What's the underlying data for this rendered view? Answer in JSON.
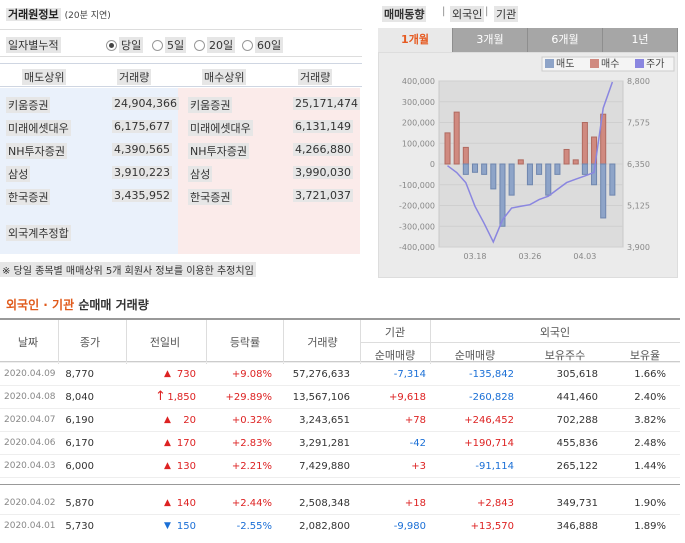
{
  "trade_info": {
    "title": "거래원정보",
    "delay": "(20분 지연)",
    "period_label": "일자별누적",
    "periods": [
      "당일",
      "5일",
      "20일",
      "60일"
    ],
    "selected_period": "당일",
    "headers": {
      "sell": "매도상위",
      "sell_vol": "거래량",
      "buy": "매수상위",
      "buy_vol": "거래량"
    },
    "sell": [
      {
        "name": "키움증권",
        "volume": "24,904,366"
      },
      {
        "name": "미래에셋대우",
        "volume": "6,175,677"
      },
      {
        "name": "NH투자증권",
        "volume": "4,390,565"
      },
      {
        "name": "삼성",
        "volume": "3,910,223"
      },
      {
        "name": "한국증권",
        "volume": "3,435,952"
      }
    ],
    "buy": [
      {
        "name": "키움증권",
        "volume": "25,171,474"
      },
      {
        "name": "미래에셋대우",
        "volume": "6,131,149"
      },
      {
        "name": "NH투자증권",
        "volume": "4,266,880"
      },
      {
        "name": "삼성",
        "volume": "3,990,030"
      },
      {
        "name": "한국증권",
        "volume": "3,721,037"
      }
    ],
    "foreign_est": "외국계추정합",
    "note": "※ 당일 종목별 매매상위 5개 회원사 정보를 이용한 추정치임"
  },
  "trend": {
    "title": "매매동향",
    "foreign": "외국인",
    "institution": "기관",
    "tabs": [
      "1개월",
      "3개월",
      "6개월",
      "1년"
    ],
    "active_tab": "1개월",
    "legend": [
      "매도",
      "매수",
      "주가"
    ],
    "colors": {
      "sell": "#8ea4c8",
      "buy": "#d08a80",
      "price": "#8a86e0"
    }
  },
  "chart_data": {
    "type": "bar",
    "left_ylim": [
      -400000,
      400000
    ],
    "left_ticks": [
      "400,000",
      "300,000",
      "200,000",
      "100,000",
      "0",
      "-100,000",
      "-200,000",
      "-300,000",
      "-400,000"
    ],
    "right_ylim": [
      3900,
      8800
    ],
    "right_ticks": [
      "8,800",
      "7,575",
      "6,350",
      "5,125",
      "3,900"
    ],
    "x_ticks": [
      "03.18",
      "03.26",
      "04.03"
    ],
    "series": [
      {
        "name": "매도",
        "values": [
          0,
          0,
          -50000,
          -40000,
          -50000,
          -120000,
          -300000,
          -150000,
          0,
          -100000,
          -50000,
          -150000,
          -50000,
          0,
          0,
          -50000,
          -100000,
          -260000,
          -150000
        ]
      },
      {
        "name": "매수",
        "values": [
          150000,
          250000,
          80000,
          0,
          0,
          0,
          0,
          0,
          20000,
          0,
          0,
          0,
          0,
          70000,
          20000,
          200000,
          130000,
          240000,
          0
        ]
      },
      {
        "name": "주가",
        "values": [
          6300,
          6100,
          5800,
          5100,
          4600,
          4050,
          4700,
          5050,
          5100,
          5150,
          5300,
          5400,
          5600,
          5800,
          5900,
          6000,
          6100,
          8000,
          8770
        ]
      }
    ]
  },
  "table": {
    "title_red": "외국인 · 기관",
    "title_rest": "순매매 거래량",
    "headers": {
      "date": "날짜",
      "close": "종가",
      "change": "전일비",
      "rate": "등락률",
      "volume": "거래량",
      "inst": "기관",
      "inst_net": "순매매량",
      "foreign": "외국인",
      "for_net": "순매매량",
      "for_hold": "보유주수",
      "for_ratio": "보유율"
    },
    "rows": [
      {
        "date": "2020.04.09",
        "close": "8,770",
        "dir": "up",
        "change": "730",
        "rate": "+9.08%",
        "volume": "57,276,633",
        "inst": "-7,314",
        "inst_dir": "down",
        "foreign": "-135,842",
        "for_dir": "down",
        "hold": "305,618",
        "ratio": "1.66%"
      },
      {
        "date": "2020.04.08",
        "close": "8,040",
        "dir": "limit",
        "change": "1,850",
        "rate": "+29.89%",
        "volume": "13,567,106",
        "inst": "+9,618",
        "inst_dir": "up",
        "foreign": "-260,828",
        "for_dir": "down",
        "hold": "441,460",
        "ratio": "2.40%"
      },
      {
        "date": "2020.04.07",
        "close": "6,190",
        "dir": "up",
        "change": "20",
        "rate": "+0.32%",
        "volume": "3,243,651",
        "inst": "+78",
        "inst_dir": "up",
        "foreign": "+246,452",
        "for_dir": "up",
        "hold": "702,288",
        "ratio": "3.82%"
      },
      {
        "date": "2020.04.06",
        "close": "6,170",
        "dir": "up",
        "change": "170",
        "rate": "+2.83%",
        "volume": "3,291,281",
        "inst": "-42",
        "inst_dir": "down",
        "foreign": "+190,714",
        "for_dir": "up",
        "hold": "455,836",
        "ratio": "2.48%"
      },
      {
        "date": "2020.04.03",
        "close": "6,000",
        "dir": "up",
        "change": "130",
        "rate": "+2.21%",
        "volume": "7,429,880",
        "inst": "+3",
        "inst_dir": "up",
        "foreign": "-91,114",
        "for_dir": "down",
        "hold": "265,122",
        "ratio": "1.44%"
      },
      {
        "date": "2020.04.02",
        "close": "5,870",
        "dir": "up",
        "change": "140",
        "rate": "+2.44%",
        "volume": "2,508,348",
        "inst": "+18",
        "inst_dir": "up",
        "foreign": "+2,843",
        "for_dir": "up",
        "hold": "349,731",
        "ratio": "1.90%"
      },
      {
        "date": "2020.04.01",
        "close": "5,730",
        "dir": "down",
        "change": "150",
        "rate": "-2.55%",
        "volume": "2,082,800",
        "inst": "-9,980",
        "inst_dir": "down",
        "foreign": "+13,570",
        "for_dir": "up",
        "hold": "346,888",
        "ratio": "1.89%"
      }
    ]
  }
}
